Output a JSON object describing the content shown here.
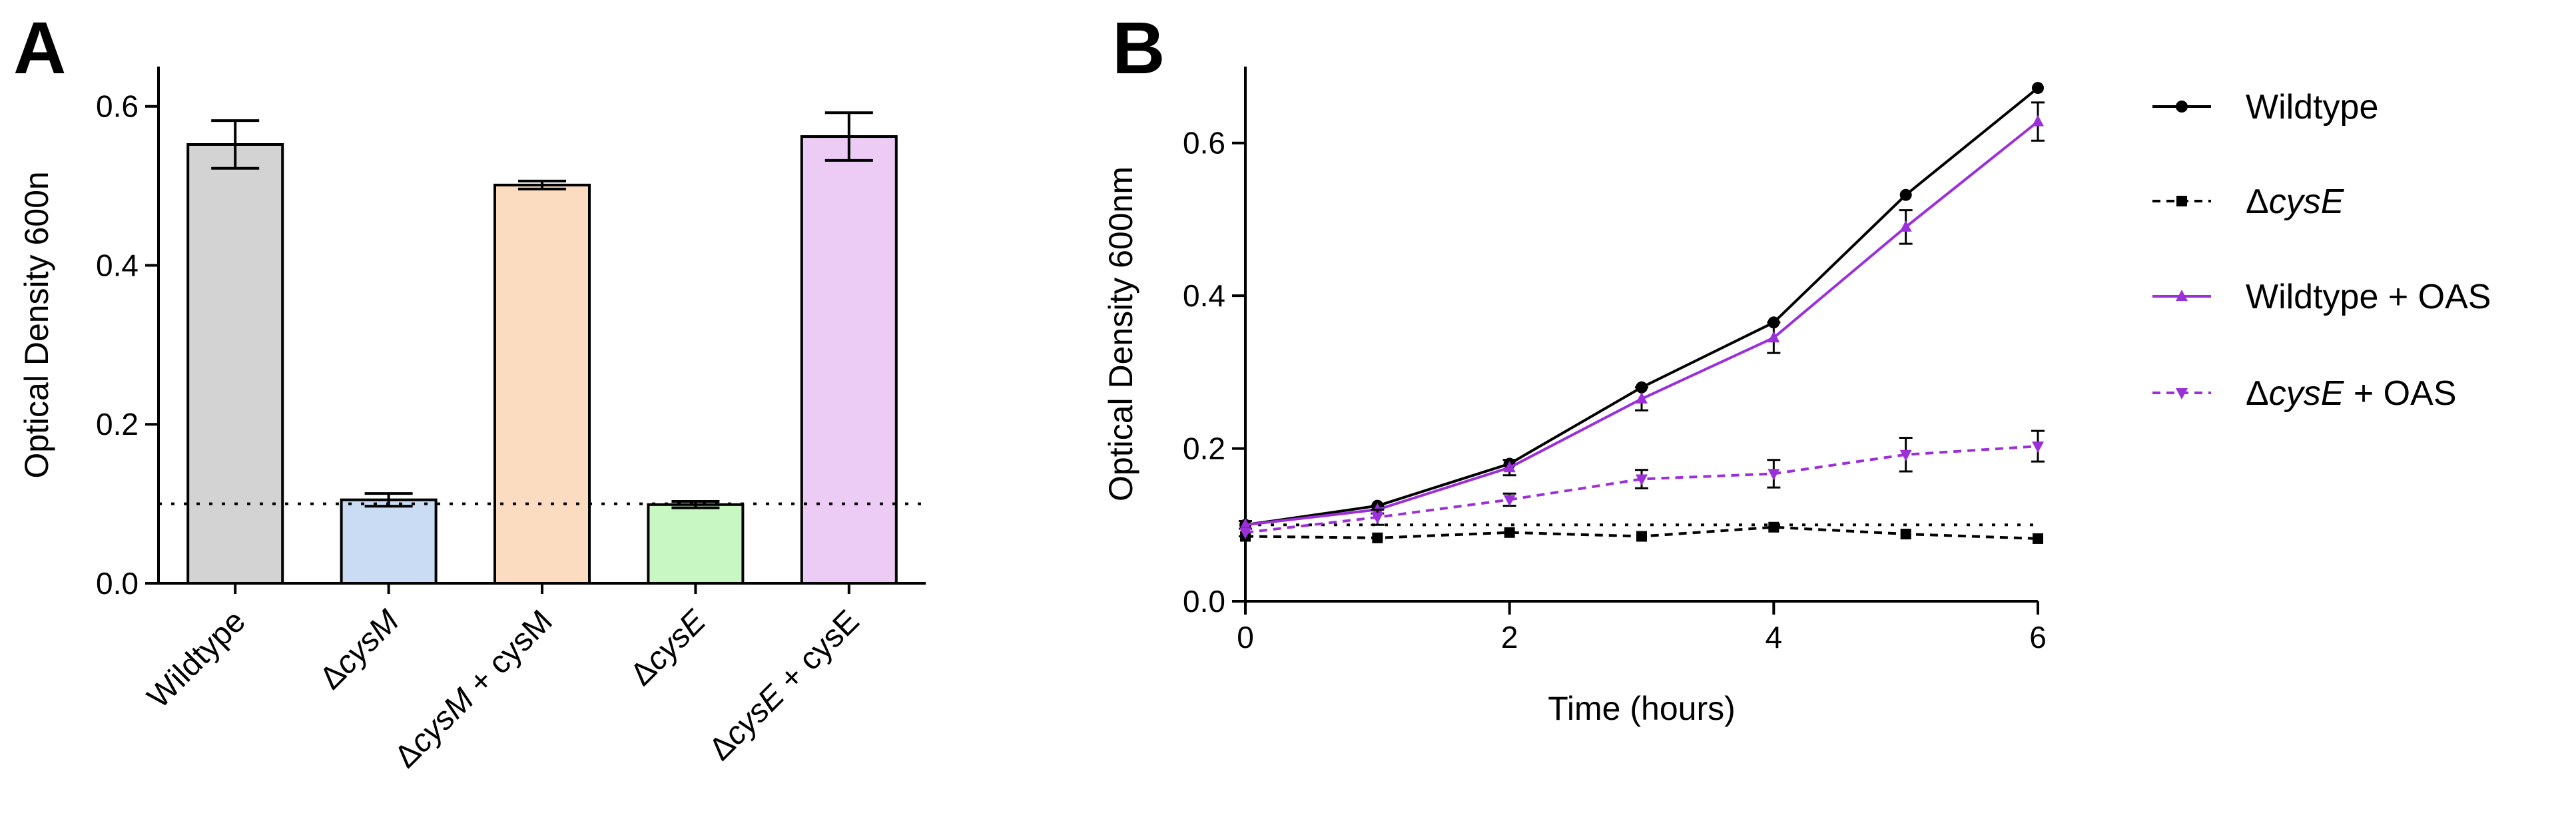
{
  "chart_data": [
    {
      "panel": "A",
      "type": "bar",
      "ylabel": "Optical Density 600n",
      "ylim": [
        0,
        0.65
      ],
      "yticks": [
        "0.0",
        "0.2",
        "0.4",
        "0.6"
      ],
      "reference_line": 0.1,
      "categories": [
        {
          "parts": [
            {
              "t": "Wildtype",
              "i": false
            }
          ]
        },
        {
          "parts": [
            {
              "t": "Δ",
              "i": false
            },
            {
              "t": "cysM",
              "i": true
            }
          ]
        },
        {
          "parts": [
            {
              "t": "Δ",
              "i": false
            },
            {
              "t": "cysM",
              "i": true
            },
            {
              "t": " + cysM",
              "i": false
            }
          ]
        },
        {
          "parts": [
            {
              "t": "Δ",
              "i": false
            },
            {
              "t": "cysE",
              "i": true
            }
          ]
        },
        {
          "parts": [
            {
              "t": "Δ",
              "i": false
            },
            {
              "t": "cysE",
              "i": true
            },
            {
              "t": " + cysE",
              "i": false
            }
          ]
        }
      ],
      "values": [
        0.552,
        0.105,
        0.501,
        0.099,
        0.562
      ],
      "errors": [
        0.03,
        0.008,
        0.005,
        0.004,
        0.03
      ],
      "colors": [
        "#d3d3d3",
        "#c9dcf3",
        "#fcdcc1",
        "#c8f7c4",
        "#eccbf4"
      ]
    },
    {
      "panel": "B",
      "type": "line",
      "xlabel": "Time (hours)",
      "ylabel": "Optical Density 600nm",
      "xlim": [
        0,
        6
      ],
      "ylim": [
        0,
        0.7
      ],
      "xticks": [
        "0",
        "2",
        "4",
        "6"
      ],
      "yticks": [
        "0.0",
        "0.2",
        "0.4",
        "0.6"
      ],
      "reference_line": 0.1,
      "x": [
        0,
        1,
        2,
        3,
        4,
        5,
        6
      ],
      "series": [
        {
          "name": "Wildtype",
          "label_parts": [
            {
              "t": "Wildtype",
              "i": false
            }
          ],
          "values": [
            0.1,
            0.125,
            0.18,
            0.28,
            0.365,
            0.532,
            0.672
          ],
          "errors": [
            0,
            0,
            0,
            0,
            0,
            0,
            0
          ],
          "color": "#000000",
          "dashed": false,
          "marker": "circle"
        },
        {
          "name": "ΔcysE",
          "label_parts": [
            {
              "t": "Δ",
              "i": false
            },
            {
              "t": "cysE",
              "i": true
            }
          ],
          "values": [
            0.085,
            0.083,
            0.09,
            0.085,
            0.097,
            0.088,
            0.082
          ],
          "errors": [
            0,
            0,
            0,
            0,
            0,
            0,
            0
          ],
          "color": "#000000",
          "dashed": true,
          "marker": "square"
        },
        {
          "name": "Wildtype + OAS",
          "label_parts": [
            {
              "t": "Wildtype + OAS",
              "i": false
            }
          ],
          "values": [
            0.1,
            0.12,
            0.175,
            0.265,
            0.345,
            0.49,
            0.628
          ],
          "errors": [
            0.005,
            0.005,
            0.01,
            0.015,
            0.02,
            0.022,
            0.025
          ],
          "color": "#9b30d9",
          "dashed": false,
          "marker": "triangle-up"
        },
        {
          "name": "ΔcysE + OAS",
          "label_parts": [
            {
              "t": "Δ",
              "i": false
            },
            {
              "t": "cysE",
              "i": true
            },
            {
              "t": " + OAS",
              "i": false
            }
          ],
          "values": [
            0.09,
            0.11,
            0.133,
            0.16,
            0.167,
            0.192,
            0.203
          ],
          "errors": [
            0.005,
            0.01,
            0.008,
            0.012,
            0.018,
            0.022,
            0.02
          ],
          "color": "#9b30d9",
          "dashed": true,
          "marker": "triangle-down"
        }
      ]
    }
  ]
}
